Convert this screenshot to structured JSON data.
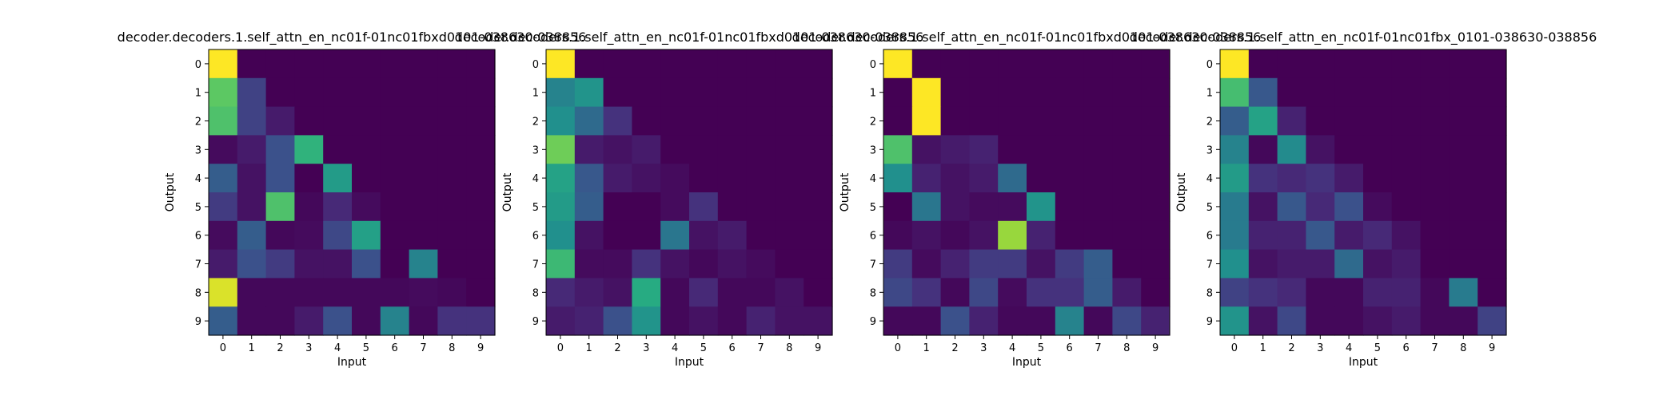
{
  "figure": {
    "background": "#ffffff",
    "colormap": "viridis"
  },
  "chart_data": [
    {
      "type": "heatmap",
      "title": "decoder.decoders.1.self_attn_en_nc01f-01nc01fbxd0101-038630-038856",
      "xlabel": "Input",
      "ylabel": "Output",
      "x_ticks": [
        "0",
        "1",
        "2",
        "3",
        "4",
        "5",
        "6",
        "7",
        "8",
        "9"
      ],
      "y_ticks": [
        "0",
        "1",
        "2",
        "3",
        "4",
        "5",
        "6",
        "7",
        "8",
        "9"
      ],
      "values": [
        [
          1.0,
          0.0,
          0.0,
          0.0,
          0.0,
          0.0,
          0.0,
          0.0,
          0.0,
          0.0
        ],
        [
          0.75,
          0.2,
          0.0,
          0.0,
          0.0,
          0.0,
          0.0,
          0.0,
          0.0,
          0.0
        ],
        [
          0.72,
          0.2,
          0.08,
          0.0,
          0.0,
          0.0,
          0.0,
          0.0,
          0.0,
          0.0
        ],
        [
          0.03,
          0.08,
          0.25,
          0.65,
          0.0,
          0.0,
          0.0,
          0.0,
          0.0,
          0.0
        ],
        [
          0.3,
          0.05,
          0.25,
          0.0,
          0.55,
          0.0,
          0.0,
          0.0,
          0.0,
          0.0
        ],
        [
          0.18,
          0.05,
          0.72,
          0.02,
          0.12,
          0.03,
          0.0,
          0.0,
          0.0,
          0.0
        ],
        [
          0.03,
          0.3,
          0.02,
          0.03,
          0.22,
          0.57,
          0.0,
          0.0,
          0.0,
          0.0
        ],
        [
          0.08,
          0.25,
          0.18,
          0.05,
          0.05,
          0.25,
          0.0,
          0.45,
          0.0,
          0.0
        ],
        [
          0.95,
          0.02,
          0.02,
          0.02,
          0.02,
          0.02,
          0.02,
          0.03,
          0.02,
          0.0
        ],
        [
          0.3,
          0.02,
          0.02,
          0.08,
          0.25,
          0.02,
          0.45,
          0.02,
          0.15,
          0.15
        ]
      ]
    },
    {
      "type": "heatmap",
      "title": "decoder.decoders.1.self_attn_en_nc01f-01nc01fbxd0101-038630-038856",
      "xlabel": "Input",
      "ylabel": "Output",
      "x_ticks": [
        "0",
        "1",
        "2",
        "3",
        "4",
        "5",
        "6",
        "7",
        "8",
        "9"
      ],
      "y_ticks": [
        "0",
        "1",
        "2",
        "3",
        "4",
        "5",
        "6",
        "7",
        "8",
        "9"
      ],
      "values": [
        [
          1.0,
          0.0,
          0.0,
          0.0,
          0.0,
          0.0,
          0.0,
          0.0,
          0.0,
          0.0
        ],
        [
          0.45,
          0.52,
          0.0,
          0.0,
          0.0,
          0.0,
          0.0,
          0.0,
          0.0,
          0.0
        ],
        [
          0.5,
          0.35,
          0.15,
          0.0,
          0.0,
          0.0,
          0.0,
          0.0,
          0.0,
          0.0
        ],
        [
          0.78,
          0.08,
          0.05,
          0.08,
          0.0,
          0.0,
          0.0,
          0.0,
          0.0,
          0.0
        ],
        [
          0.58,
          0.28,
          0.08,
          0.05,
          0.03,
          0.0,
          0.0,
          0.0,
          0.0,
          0.0
        ],
        [
          0.55,
          0.3,
          0.0,
          0.0,
          0.03,
          0.15,
          0.0,
          0.0,
          0.0,
          0.0
        ],
        [
          0.5,
          0.05,
          0.0,
          0.0,
          0.4,
          0.05,
          0.08,
          0.0,
          0.0,
          0.0
        ],
        [
          0.68,
          0.03,
          0.03,
          0.15,
          0.05,
          0.02,
          0.05,
          0.03,
          0.0,
          0.0
        ],
        [
          0.12,
          0.08,
          0.05,
          0.62,
          0.02,
          0.12,
          0.02,
          0.02,
          0.05,
          0.0
        ],
        [
          0.08,
          0.1,
          0.25,
          0.52,
          0.02,
          0.05,
          0.02,
          0.1,
          0.05,
          0.05
        ]
      ]
    },
    {
      "type": "heatmap",
      "title": "decoder.decoders.1.self_attn_en_nc01f-01nc01fbxd0101-038630-038856",
      "xlabel": "Input",
      "ylabel": "Output",
      "x_ticks": [
        "0",
        "1",
        "2",
        "3",
        "4",
        "5",
        "6",
        "7",
        "8",
        "9"
      ],
      "y_ticks": [
        "0",
        "1",
        "2",
        "3",
        "4",
        "5",
        "6",
        "7",
        "8",
        "9"
      ],
      "values": [
        [
          1.0,
          0.0,
          0.0,
          0.0,
          0.0,
          0.0,
          0.0,
          0.0,
          0.0,
          0.0
        ],
        [
          0.0,
          1.0,
          0.0,
          0.0,
          0.0,
          0.0,
          0.0,
          0.0,
          0.0,
          0.0
        ],
        [
          0.0,
          1.0,
          0.0,
          0.0,
          0.0,
          0.0,
          0.0,
          0.0,
          0.0,
          0.0
        ],
        [
          0.72,
          0.05,
          0.08,
          0.1,
          0.0,
          0.0,
          0.0,
          0.0,
          0.0,
          0.0
        ],
        [
          0.5,
          0.1,
          0.05,
          0.08,
          0.35,
          0.0,
          0.0,
          0.0,
          0.0,
          0.0
        ],
        [
          0.0,
          0.4,
          0.05,
          0.03,
          0.03,
          0.52,
          0.0,
          0.0,
          0.0,
          0.0
        ],
        [
          0.02,
          0.05,
          0.02,
          0.05,
          0.85,
          0.1,
          0.0,
          0.0,
          0.0,
          0.0
        ],
        [
          0.18,
          0.03,
          0.1,
          0.18,
          0.18,
          0.05,
          0.18,
          0.3,
          0.0,
          0.0
        ],
        [
          0.22,
          0.15,
          0.02,
          0.22,
          0.03,
          0.15,
          0.15,
          0.3,
          0.08,
          0.0
        ],
        [
          0.02,
          0.02,
          0.25,
          0.1,
          0.02,
          0.02,
          0.45,
          0.02,
          0.22,
          0.1
        ]
      ]
    },
    {
      "type": "heatmap",
      "title": "decoder.decoders.1.self_attn_en_nc01f-01nc01fbx_0101-038630-038856",
      "xlabel": "Input",
      "ylabel": "Output",
      "x_ticks": [
        "0",
        "1",
        "2",
        "3",
        "4",
        "5",
        "6",
        "7",
        "8",
        "9"
      ],
      "y_ticks": [
        "0",
        "1",
        "2",
        "3",
        "4",
        "5",
        "6",
        "7",
        "8",
        "9"
      ],
      "values": [
        [
          1.0,
          0.0,
          0.0,
          0.0,
          0.0,
          0.0,
          0.0,
          0.0,
          0.0,
          0.0
        ],
        [
          0.7,
          0.28,
          0.0,
          0.0,
          0.0,
          0.0,
          0.0,
          0.0,
          0.0,
          0.0
        ],
        [
          0.3,
          0.58,
          0.1,
          0.0,
          0.0,
          0.0,
          0.0,
          0.0,
          0.0,
          0.0
        ],
        [
          0.45,
          0.02,
          0.48,
          0.05,
          0.0,
          0.0,
          0.0,
          0.0,
          0.0,
          0.0
        ],
        [
          0.55,
          0.15,
          0.12,
          0.15,
          0.08,
          0.0,
          0.0,
          0.0,
          0.0,
          0.0
        ],
        [
          0.42,
          0.05,
          0.28,
          0.12,
          0.25,
          0.03,
          0.0,
          0.0,
          0.0,
          0.0
        ],
        [
          0.42,
          0.1,
          0.1,
          0.28,
          0.08,
          0.12,
          0.05,
          0.0,
          0.0,
          0.0
        ],
        [
          0.5,
          0.05,
          0.08,
          0.08,
          0.35,
          0.05,
          0.08,
          0.0,
          0.0,
          0.0
        ],
        [
          0.2,
          0.15,
          0.12,
          0.02,
          0.02,
          0.1,
          0.1,
          0.02,
          0.42,
          0.0
        ],
        [
          0.52,
          0.05,
          0.22,
          0.02,
          0.02,
          0.05,
          0.08,
          0.02,
          0.02,
          0.2
        ]
      ]
    }
  ]
}
